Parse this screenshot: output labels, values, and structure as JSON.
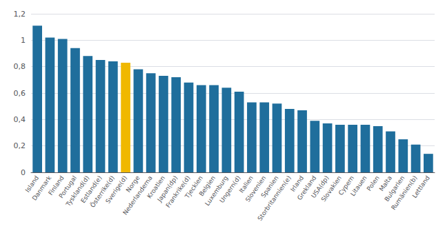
{
  "chart_data": {
    "type": "bar",
    "categories": [
      "Island",
      "Danmark",
      "Finland",
      "Portugal",
      "Tyskland(d)",
      "Estland(e)",
      "Österrike(d)",
      "Sverige(d)",
      "Norge",
      "Nederlanderna",
      "Kroatien",
      "Japan(dp)",
      "Frankrike(d)",
      "Tjeckien",
      "Belgien",
      "Luxemburg",
      "Ungern(d)",
      "Italien",
      "Slovenien",
      "Spanien",
      "Storbritannien(e)",
      "Irland",
      "Grekland",
      "USA(dp)",
      "Slovakien",
      "Cypern",
      "Litauen",
      "Polen",
      "Malta",
      "Bulgarien",
      "Rumänien(b)",
      "Lettland"
    ],
    "values": [
      1.11,
      1.02,
      1.01,
      0.94,
      0.88,
      0.85,
      0.84,
      0.83,
      0.78,
      0.75,
      0.73,
      0.72,
      0.68,
      0.66,
      0.66,
      0.64,
      0.61,
      0.53,
      0.53,
      0.52,
      0.48,
      0.47,
      0.39,
      0.37,
      0.36,
      0.36,
      0.36,
      0.35,
      0.31,
      0.25,
      0.21,
      0.14
    ],
    "colors": [
      "#1f6e9c",
      "#1f6e9c",
      "#1f6e9c",
      "#1f6e9c",
      "#1f6e9c",
      "#1f6e9c",
      "#1f6e9c",
      "#f0b800",
      "#1f6e9c",
      "#1f6e9c",
      "#1f6e9c",
      "#1f6e9c",
      "#1f6e9c",
      "#1f6e9c",
      "#1f6e9c",
      "#1f6e9c",
      "#1f6e9c",
      "#1f6e9c",
      "#1f6e9c",
      "#1f6e9c",
      "#1f6e9c",
      "#1f6e9c",
      "#1f6e9c",
      "#1f6e9c",
      "#1f6e9c",
      "#1f6e9c",
      "#1f6e9c",
      "#1f6e9c",
      "#1f6e9c",
      "#1f6e9c",
      "#1f6e9c",
      "#1f6e9c"
    ],
    "ylim": [
      0,
      1.2
    ],
    "yticks": [
      0,
      {
        "value": 0.2,
        "label": "0,2"
      },
      {
        "value": 0.4,
        "label": "0,4"
      },
      {
        "value": 0.6,
        "label": "0,6"
      },
      {
        "value": 0.8,
        "label": "0,8"
      },
      1,
      {
        "value": 1.2,
        "label": "1,2"
      }
    ],
    "grid": true
  }
}
